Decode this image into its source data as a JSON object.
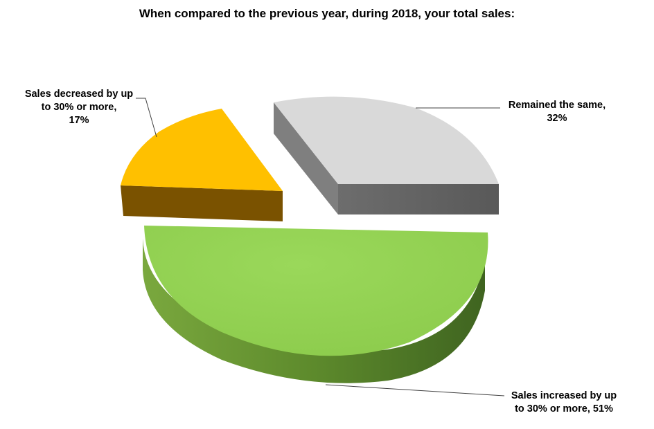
{
  "chart_data": {
    "type": "pie",
    "title": "When compared to the previous year, during 2018, your total sales:",
    "slices": [
      {
        "label": "Sales decreased by up to 30% or more",
        "label_lines": [
          "Sales decreased by up",
          "to 30% or more,",
          "17%"
        ],
        "value": 17,
        "color": "#FFC000"
      },
      {
        "label": "Remained the same",
        "label_lines": [
          "Remained the same,",
          "32%"
        ],
        "value": 32,
        "color": "#D9D9D9"
      },
      {
        "label": "Sales increased by up to 30% or more",
        "label_lines": [
          "Sales increased by up",
          "to 30% or more, 51%"
        ],
        "value": 51,
        "color": "#92D050"
      }
    ],
    "style": "3d-exploded-pie"
  }
}
